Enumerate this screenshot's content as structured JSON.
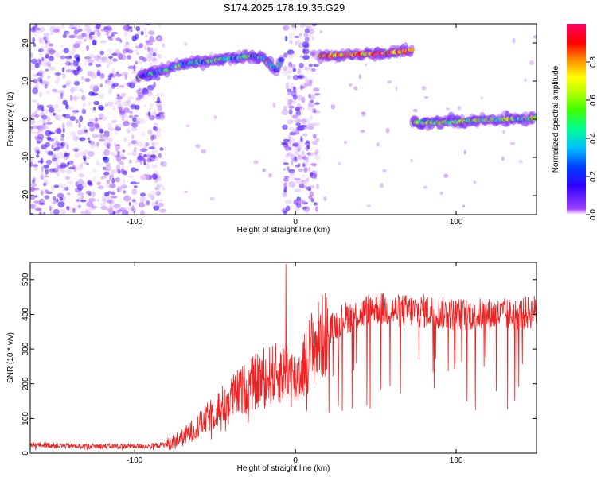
{
  "title": "S174.2025.178.19.35.G29",
  "chart_data": [
    {
      "type": "heatmap",
      "xlabel": "Height of straight line (km)",
      "ylabel": "Frequency (Hz)",
      "xlim": [
        -165,
        150
      ],
      "ylim": [
        -25,
        25
      ],
      "xticks": [
        -100,
        0,
        100
      ],
      "yticks": [
        -20,
        -10,
        0,
        10,
        20
      ],
      "colorbar": {
        "label": "Normalized spectral amplitude",
        "range": [
          0.0,
          1.0
        ],
        "ticks": [
          0.0,
          0.2,
          0.4,
          0.6,
          0.8
        ],
        "tick_labels": [
          "0.0",
          "0.2",
          "0.4",
          "0.6",
          "0.8"
        ],
        "colors": [
          "#ffffff",
          "#7f00ff",
          "#0000ff",
          "#00c0ff",
          "#00ff40",
          "#c0ff00",
          "#ffff00",
          "#ff8000",
          "#ff0000",
          "#ff0080"
        ]
      },
      "features": [
        {
          "name": "noise-scatter",
          "x_range": [
            -165,
            -82
          ],
          "y_range": [
            -25,
            25
          ],
          "amplitude": 0.1
        },
        {
          "name": "vertical-band",
          "x_range": [
            -7,
            14
          ],
          "y_range": [
            -25,
            25
          ],
          "amplitude": 0.12
        },
        {
          "name": "rising-trace",
          "x": [
            -98,
            -90,
            -80,
            -70,
            -60,
            -50,
            -40,
            -30,
            -20,
            -12,
            -8
          ],
          "y": [
            11,
            12,
            13,
            14.5,
            15,
            15.5,
            16,
            16.5,
            16,
            13,
            16
          ],
          "amplitude": 0.45
        },
        {
          "name": "upper-trace",
          "x": [
            15,
            25,
            35,
            45,
            55,
            65,
            73
          ],
          "y": [
            16.5,
            16.7,
            17,
            17,
            17.3,
            17.7,
            18
          ],
          "amplitude": 0.8
        },
        {
          "name": "lower-trace",
          "x": [
            73,
            85,
            100,
            115,
            130,
            145,
            150
          ],
          "y": [
            -0.8,
            -0.9,
            -0.6,
            -0.3,
            0,
            0.2,
            0.3
          ],
          "amplitude": 0.55
        }
      ]
    },
    {
      "type": "line",
      "xlabel": "Height of straight line (km)",
      "ylabel": "SNR (10 * v/v)",
      "xlim": [
        -165,
        150
      ],
      "ylim": [
        0,
        550
      ],
      "xticks": [
        -100,
        0,
        100
      ],
      "yticks": [
        0,
        100,
        200,
        300,
        400,
        500
      ],
      "series": [
        {
          "color": "#ee2222",
          "x": [
            -165,
            -150,
            -130,
            -110,
            -90,
            -80,
            -70,
            -60,
            -50,
            -40,
            -30,
            -20,
            -10,
            -5,
            0,
            10,
            20,
            30,
            40,
            50,
            60,
            80,
            100,
            120,
            140,
            150
          ],
          "y": [
            25,
            22,
            20,
            20,
            20,
            25,
            45,
            80,
            120,
            160,
            190,
            220,
            230,
            240,
            210,
            300,
            350,
            390,
            400,
            420,
            410,
            410,
            400,
            400,
            400,
            410
          ]
        }
      ],
      "spike": {
        "x": -6,
        "y": 545
      }
    }
  ]
}
